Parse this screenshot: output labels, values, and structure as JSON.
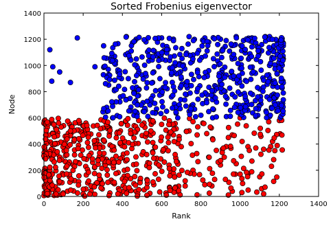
{
  "chart_data": {
    "type": "scatter",
    "title": "Sorted Frobenius eigenvector",
    "xlabel": "Rank",
    "ylabel": "Node",
    "xlim": [
      0,
      1400
    ],
    "ylim": [
      0,
      1400
    ],
    "xticks": [
      "0",
      "200",
      "400",
      "600",
      "800",
      "1000",
      "1200",
      "1400"
    ],
    "yticks": [
      "0",
      "200",
      "400",
      "600",
      "800",
      "1000",
      "1200",
      "1400"
    ],
    "grid": false,
    "legend": "none",
    "series": [
      {
        "color": "#ff0000",
        "region": {
          "rank": [
            0,
            1220
          ],
          "node": [
            0,
            600
          ]
        },
        "count": 600,
        "points": [
          [
            20,
            560
          ],
          [
            60,
            520
          ],
          [
            100,
            540
          ],
          [
            140,
            500
          ],
          [
            180,
            560
          ],
          [
            230,
            470
          ],
          [
            270,
            430
          ],
          [
            330,
            520
          ],
          [
            390,
            500
          ],
          [
            460,
            540
          ],
          [
            510,
            560
          ],
          [
            600,
            550
          ],
          [
            660,
            470
          ],
          [
            740,
            500
          ],
          [
            810,
            560
          ],
          [
            860,
            440
          ],
          [
            940,
            450
          ],
          [
            1010,
            420
          ],
          [
            1040,
            380
          ],
          [
            1080,
            370
          ],
          [
            1120,
            360
          ],
          [
            1060,
            270
          ],
          [
            980,
            250
          ],
          [
            1100,
            150
          ],
          [
            1040,
            170
          ],
          [
            1160,
            230
          ],
          [
            1000,
            170
          ],
          [
            900,
            240
          ],
          [
            870,
            130
          ],
          [
            960,
            40
          ],
          [
            1120,
            20
          ],
          [
            820,
            90
          ],
          [
            720,
            80
          ],
          [
            640,
            70
          ],
          [
            560,
            90
          ],
          [
            470,
            40
          ],
          [
            380,
            60
          ],
          [
            290,
            120
          ],
          [
            200,
            20
          ],
          [
            120,
            40
          ],
          [
            60,
            30
          ],
          [
            20,
            10
          ],
          [
            30,
            200
          ],
          [
            80,
            300
          ],
          [
            150,
            240
          ],
          [
            240,
            330
          ],
          [
            320,
            280
          ],
          [
            410,
            200
          ],
          [
            500,
            320
          ],
          [
            590,
            230
          ],
          [
            680,
            260
          ],
          [
            760,
            200
          ],
          [
            840,
            300
          ],
          [
            910,
            360
          ],
          [
            960,
            470
          ],
          [
            1000,
            600
          ],
          [
            830,
            480
          ],
          [
            700,
            380
          ]
        ]
      },
      {
        "color": "#0000ff",
        "region": {
          "rank": [
            0,
            1220
          ],
          "node": [
            600,
            1220
          ]
        },
        "count": 600,
        "points": [
          [
            30,
            1120
          ],
          [
            45,
            990
          ],
          [
            40,
            880
          ],
          [
            80,
            950
          ],
          [
            135,
            870
          ],
          [
            170,
            1210
          ],
          [
            260,
            990
          ],
          [
            305,
            985
          ],
          [
            330,
            930
          ],
          [
            360,
            1070
          ],
          [
            420,
            1220
          ],
          [
            470,
            1200
          ],
          [
            520,
            1180
          ],
          [
            600,
            1210
          ],
          [
            660,
            1200
          ],
          [
            740,
            1220
          ],
          [
            820,
            1210
          ],
          [
            900,
            1200
          ],
          [
            980,
            1220
          ],
          [
            1060,
            1210
          ],
          [
            1150,
            1220
          ],
          [
            1210,
            1200
          ],
          [
            1220,
            1150
          ],
          [
            1200,
            1030
          ],
          [
            1215,
            880
          ],
          [
            1210,
            700
          ],
          [
            1205,
            600
          ],
          [
            1150,
            610
          ],
          [
            1090,
            620
          ],
          [
            1010,
            640
          ],
          [
            930,
            610
          ],
          [
            860,
            600
          ],
          [
            800,
            620
          ],
          [
            740,
            650
          ],
          [
            690,
            700
          ],
          [
            650,
            760
          ],
          [
            600,
            780
          ],
          [
            550,
            720
          ],
          [
            480,
            700
          ],
          [
            420,
            740
          ],
          [
            390,
            760
          ],
          [
            320,
            680
          ],
          [
            350,
            600
          ],
          [
            330,
            850
          ],
          [
            430,
            900
          ],
          [
            470,
            1000
          ],
          [
            560,
            950
          ],
          [
            620,
            1040
          ],
          [
            700,
            900
          ],
          [
            760,
            1080
          ],
          [
            840,
            960
          ],
          [
            900,
            860
          ],
          [
            960,
            1050
          ],
          [
            1000,
            780
          ],
          [
            1060,
            940
          ],
          [
            1100,
            820
          ],
          [
            1150,
            1000
          ],
          [
            780,
            800
          ],
          [
            880,
            720
          ],
          [
            1040,
            700
          ]
        ]
      }
    ]
  }
}
